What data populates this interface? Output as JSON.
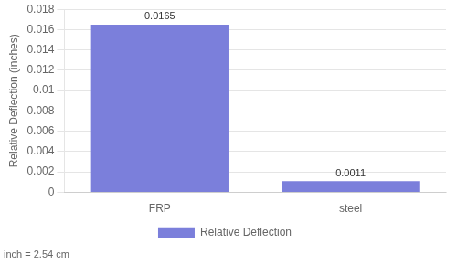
{
  "chart_data": {
    "type": "bar",
    "categories": [
      "FRP",
      "steel"
    ],
    "series": [
      {
        "name": "Relative Deflection",
        "color": "#7b7fdb",
        "values": [
          0.0165,
          0.0011
        ]
      }
    ],
    "ylabel": "Relative Deflection (inches)",
    "ylim": [
      0,
      0.018
    ],
    "yticks": [
      0,
      0.002,
      0.004,
      0.006,
      0.008,
      0.01,
      0.012,
      0.014,
      0.016,
      0.018
    ],
    "grid": true,
    "legend": "bottom",
    "data_labels": true,
    "annotations": [
      "inch = 2.54 cm"
    ]
  }
}
